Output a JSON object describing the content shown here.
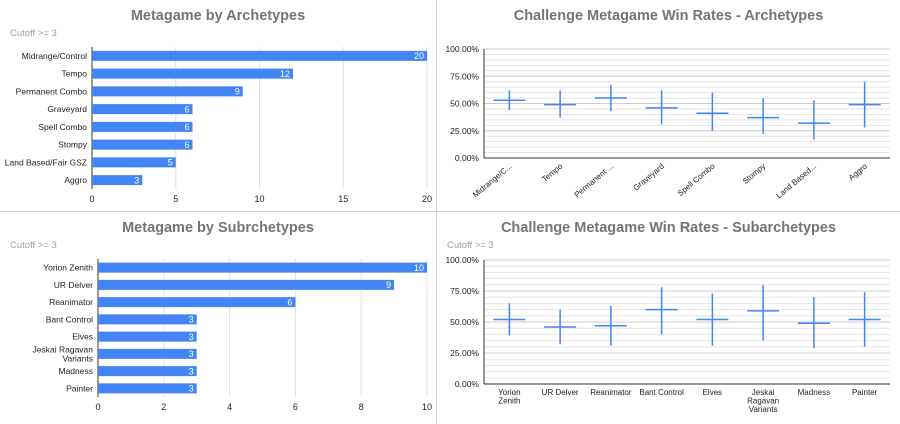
{
  "chart_data": [
    {
      "type": "bar",
      "orientation": "horizontal",
      "title": "Metagame by Archetypes",
      "subtitle": "Cutoff >= 3",
      "categories": [
        "Midrange/Control",
        "Tempo",
        "Permanent Combo",
        "Graveyard",
        "Spell Combo",
        "Stompy",
        "Land Based/Fair GSZ",
        "Aggro"
      ],
      "values": [
        20,
        12,
        9,
        6,
        6,
        6,
        5,
        3
      ],
      "xlim": [
        0,
        20
      ],
      "xticks": [
        "0",
        "5",
        "10",
        "15",
        "20"
      ],
      "grid": true,
      "color": "#4285f4"
    },
    {
      "type": "scatter",
      "marker": "error-bar",
      "title": "Challenge Metagame Win Rates - Archetypes",
      "categories": [
        "Midrange/C...",
        "Tempo",
        "Permanent ...",
        "Graveyard",
        "Spell Combo",
        "Stompy",
        "Land Based...",
        "Aggro"
      ],
      "center": [
        53,
        49,
        55,
        46,
        41,
        37,
        32,
        49
      ],
      "low": [
        44,
        37,
        43,
        31,
        25,
        22,
        17,
        28
      ],
      "high": [
        62,
        62,
        67,
        62,
        60,
        55,
        53,
        70
      ],
      "ylim": [
        0,
        100
      ],
      "yticks": [
        "0.00%",
        "25.00%",
        "50.00%",
        "75.00%",
        "100.00%"
      ],
      "grid": true,
      "color": "#4285f4"
    },
    {
      "type": "bar",
      "orientation": "horizontal",
      "title": "Metagame by Subrchetypes",
      "subtitle": "Cutoff >= 3",
      "categories": [
        "Yorion Zenith",
        "UR Delver",
        "Reanimator",
        "Bant Control",
        "Elves",
        "Jeskai Ragavan Variants",
        "Madness",
        "Painter"
      ],
      "values": [
        10,
        9,
        6,
        3,
        3,
        3,
        3,
        3
      ],
      "xlim": [
        0,
        10
      ],
      "xticks": [
        "0",
        "2",
        "4",
        "6",
        "8",
        "10"
      ],
      "grid": true,
      "color": "#4285f4"
    },
    {
      "type": "scatter",
      "marker": "error-bar",
      "title": "Challenge Metagame Win Rates - Subarchetypes",
      "categories": [
        "Yorion Zenith",
        "UR Delver",
        "Reanimator",
        "Bant Control",
        "Elves",
        "Jeskai Ragavan Variants",
        "Madness",
        "Painter"
      ],
      "center": [
        52,
        46,
        47,
        60,
        52,
        59,
        49,
        52
      ],
      "low": [
        39,
        32,
        31,
        40,
        31,
        35,
        29,
        30
      ],
      "high": [
        65,
        60,
        63,
        78,
        73,
        80,
        70,
        74
      ],
      "ylim": [
        0,
        100
      ],
      "yticks": [
        "0.00%",
        "25.00%",
        "50.00%",
        "75.00%",
        "100.00%"
      ],
      "grid": true,
      "color": "#4285f4"
    }
  ],
  "panels": {
    "tl": {
      "title": "Metagame by Archetypes",
      "subtitle": "Cutoff >= 3"
    },
    "tr": {
      "title": "Challenge Metagame Win Rates - Archetypes",
      "subtitle": ""
    },
    "bl": {
      "title": "Metagame by Subrchetypes",
      "subtitle": "Cutoff >= 3"
    },
    "br": {
      "title": "Challenge Metagame Win Rates - Subarchetypes",
      "subtitle": "Cutoff >= 3"
    }
  },
  "colors": {
    "bar": "#4285f4",
    "grid": "#e0e0e0",
    "axis": "#333333",
    "text": "#222222"
  }
}
